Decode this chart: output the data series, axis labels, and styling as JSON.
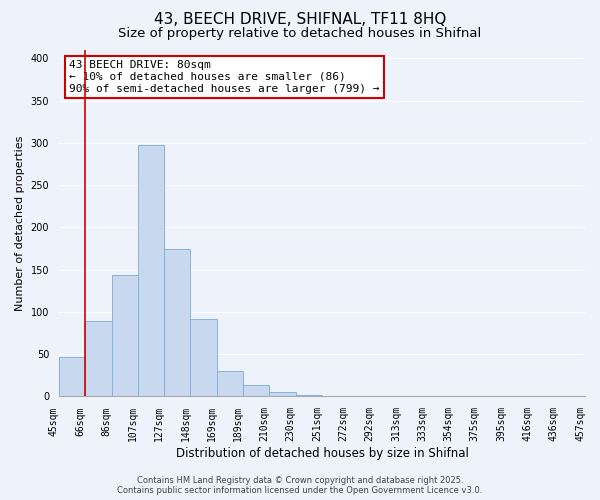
{
  "title": "43, BEECH DRIVE, SHIFNAL, TF11 8HQ",
  "subtitle": "Size of property relative to detached houses in Shifnal",
  "xlabel": "Distribution of detached houses by size in Shifnal",
  "ylabel": "Number of detached properties",
  "bar_values": [
    47,
    89,
    144,
    298,
    175,
    92,
    30,
    13,
    5,
    2,
    0,
    0,
    0,
    0,
    0,
    0,
    0,
    0,
    0,
    0
  ],
  "bin_labels": [
    "45sqm",
    "66sqm",
    "86sqm",
    "107sqm",
    "127sqm",
    "148sqm",
    "169sqm",
    "189sqm",
    "210sqm",
    "230sqm",
    "251sqm",
    "272sqm",
    "292sqm",
    "313sqm",
    "333sqm",
    "354sqm",
    "375sqm",
    "395sqm",
    "416sqm",
    "436sqm",
    "457sqm"
  ],
  "bar_color": "#c8d8ee",
  "bar_edge_color": "#7aadd4",
  "vline_x": 1,
  "vline_color": "#cc0000",
  "ylim": [
    0,
    410
  ],
  "yticks": [
    0,
    50,
    100,
    150,
    200,
    250,
    300,
    350,
    400
  ],
  "annotation_text": "43 BEECH DRIVE: 80sqm\n← 10% of detached houses are smaller (86)\n90% of semi-detached houses are larger (799) →",
  "annotation_box_color": "#ffffff",
  "annotation_box_edge": "#cc0000",
  "footer_line1": "Contains HM Land Registry data © Crown copyright and database right 2025.",
  "footer_line2": "Contains public sector information licensed under the Open Government Licence v3.0.",
  "background_color": "#eef2fa",
  "grid_color": "#ffffff",
  "title_fontsize": 11,
  "subtitle_fontsize": 9.5,
  "xlabel_fontsize": 8.5,
  "ylabel_fontsize": 8,
  "tick_fontsize": 7,
  "annotation_fontsize": 8,
  "footer_fontsize": 6
}
